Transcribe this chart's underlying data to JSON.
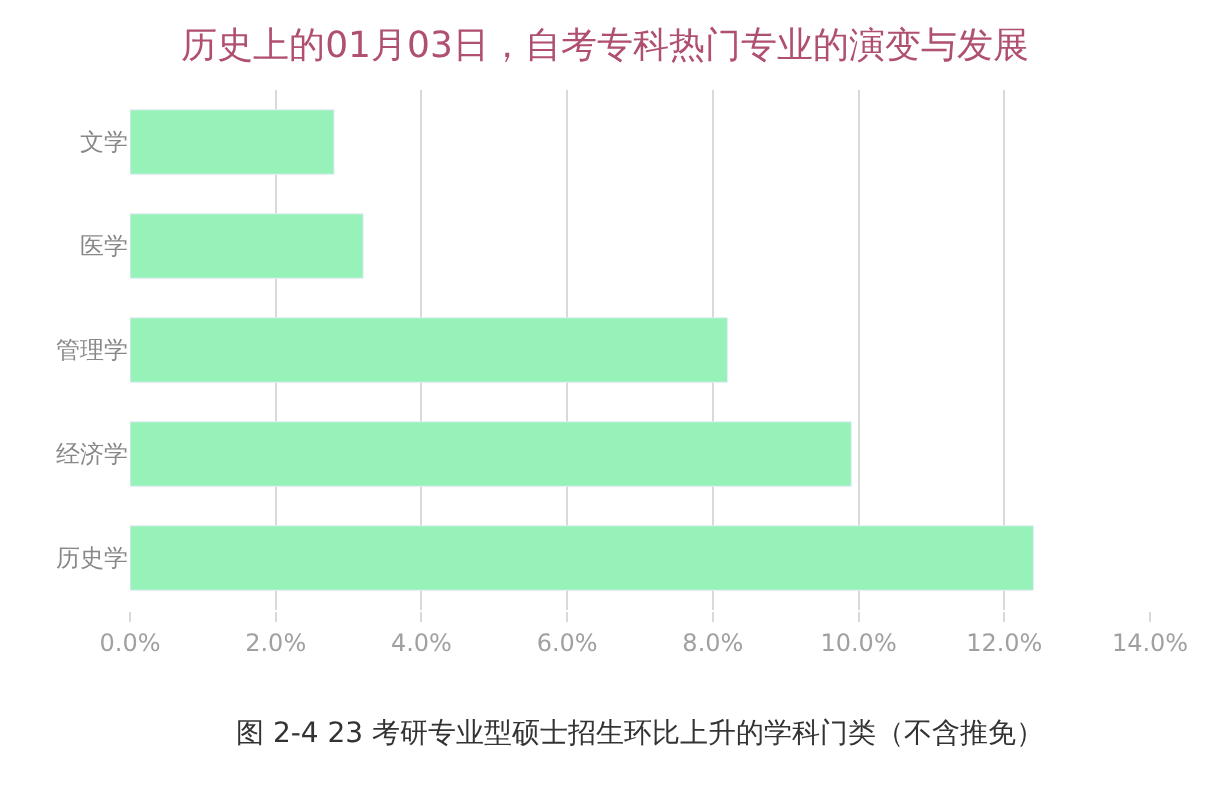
{
  "chart_data": {
    "type": "bar",
    "orientation": "horizontal",
    "title": "历史上的01月03日，自考专科热门专业的演变与发展",
    "categories": [
      "文学",
      "医学",
      "管理学",
      "经济学",
      "历史学"
    ],
    "values": [
      2.8,
      3.2,
      8.2,
      9.9,
      12.4
    ],
    "color": "#96f2b8",
    "xlim": [
      0,
      14
    ],
    "xticks": [
      {
        "value": 0,
        "label": "0.0%"
      },
      {
        "value": 2,
        "label": "2.0%"
      },
      {
        "value": 4,
        "label": "4.0%"
      },
      {
        "value": 6,
        "label": "6.0%"
      },
      {
        "value": 8,
        "label": "8.0%"
      },
      {
        "value": 10,
        "label": "10.0%"
      },
      {
        "value": 12,
        "label": "12.0%"
      },
      {
        "value": 14,
        "label": "14.0%"
      }
    ],
    "grid": "x",
    "annotations": [
      "图 2-4 23 考研专业型硕士招生环比上升的学科门类（不含推免）"
    ]
  }
}
